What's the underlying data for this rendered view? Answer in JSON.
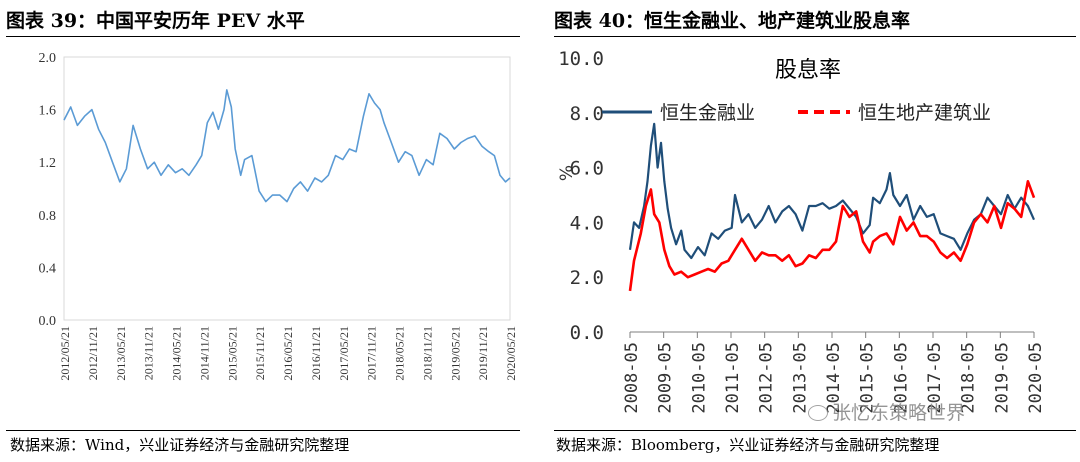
{
  "left_panel": {
    "title": "图表 39：中国平安历年 PEV 水平",
    "source": "数据来源：Wind，兴业证券经济与金融研究院整理"
  },
  "right_panel": {
    "title": "图表 40：恒生金融业、地产建筑业股息率",
    "source": "数据来源：Bloomberg，兴业证券经济与金融研究院整理"
  },
  "watermark": {
    "text": "张忆东策略世界"
  },
  "chart_data": [
    {
      "type": "line",
      "title": "",
      "xlabel": "",
      "ylabel": "",
      "ylim": [
        0,
        2
      ],
      "yticks": [
        "0.0",
        "0.4",
        "0.8",
        "1.2",
        "1.6",
        "2.0"
      ],
      "categories": [
        "2012/05/21",
        "2012/11/21",
        "2013/05/21",
        "2013/11/21",
        "2014/05/21",
        "2014/11/21",
        "2015/05/21",
        "2015/11/21",
        "2016/05/21",
        "2016/11/21",
        "2017/05/21",
        "2017/11/21",
        "2018/05/21",
        "2018/11/21",
        "2019/05/21",
        "2019/11/21",
        "2020/05/21"
      ],
      "x_range": [
        2012.38,
        2020.38
      ],
      "grid": false,
      "colors": {
        "line": "#5b9bd5"
      },
      "series": [
        {
          "name": "PEV",
          "x": [
            2012.38,
            2012.5,
            2012.62,
            2012.75,
            2012.88,
            2013.0,
            2013.12,
            2013.25,
            2013.38,
            2013.5,
            2013.62,
            2013.75,
            2013.88,
            2014.0,
            2014.12,
            2014.25,
            2014.38,
            2014.5,
            2014.62,
            2014.75,
            2014.85,
            2014.95,
            2015.05,
            2015.15,
            2015.25,
            2015.3,
            2015.38,
            2015.45,
            2015.55,
            2015.62,
            2015.75,
            2015.88,
            2016.0,
            2016.12,
            2016.25,
            2016.38,
            2016.5,
            2016.62,
            2016.75,
            2016.88,
            2017.0,
            2017.12,
            2017.25,
            2017.38,
            2017.5,
            2017.62,
            2017.75,
            2017.85,
            2017.95,
            2018.05,
            2018.12,
            2018.25,
            2018.38,
            2018.5,
            2018.62,
            2018.75,
            2018.88,
            2019.0,
            2019.12,
            2019.25,
            2019.38,
            2019.5,
            2019.62,
            2019.75,
            2019.88,
            2020.0,
            2020.1,
            2020.2,
            2020.3,
            2020.38
          ],
          "values": [
            1.52,
            1.62,
            1.48,
            1.55,
            1.6,
            1.45,
            1.35,
            1.2,
            1.05,
            1.15,
            1.48,
            1.3,
            1.15,
            1.2,
            1.1,
            1.18,
            1.12,
            1.15,
            1.1,
            1.18,
            1.25,
            1.5,
            1.58,
            1.45,
            1.6,
            1.75,
            1.62,
            1.3,
            1.1,
            1.22,
            1.25,
            0.98,
            0.9,
            0.95,
            0.95,
            0.9,
            1.0,
            1.05,
            0.98,
            1.08,
            1.05,
            1.1,
            1.25,
            1.22,
            1.3,
            1.28,
            1.55,
            1.72,
            1.65,
            1.6,
            1.5,
            1.35,
            1.2,
            1.28,
            1.25,
            1.1,
            1.22,
            1.18,
            1.42,
            1.38,
            1.3,
            1.35,
            1.38,
            1.4,
            1.32,
            1.28,
            1.25,
            1.1,
            1.05,
            1.08
          ]
        }
      ]
    },
    {
      "type": "line",
      "title": "股息率",
      "xlabel": "",
      "ylabel": "%",
      "ylim": [
        0,
        10
      ],
      "yticks": [
        "0.0",
        "2.0",
        "4.0",
        "6.0",
        "8.0",
        "10.0"
      ],
      "categories": [
        "2008-05",
        "2009-05",
        "2010-05",
        "2011-05",
        "2012-05",
        "2013-05",
        "2014-05",
        "2015-05",
        "2016-05",
        "2017-05",
        "2018-05",
        "2019-05",
        "2020-05"
      ],
      "x_range": [
        2008.38,
        2020.38
      ],
      "legend": "top",
      "grid": false,
      "colors": {
        "fin": "#1f4e79",
        "prop": "#ff0000"
      },
      "series": [
        {
          "name": "恒生金融业",
          "x": [
            2008.38,
            2008.5,
            2008.65,
            2008.8,
            2008.9,
            2009.0,
            2009.1,
            2009.2,
            2009.3,
            2009.4,
            2009.5,
            2009.6,
            2009.75,
            2009.9,
            2010.0,
            2010.2,
            2010.4,
            2010.6,
            2010.8,
            2011.0,
            2011.2,
            2011.4,
            2011.5,
            2011.7,
            2011.9,
            2012.1,
            2012.3,
            2012.5,
            2012.7,
            2012.9,
            2013.1,
            2013.3,
            2013.5,
            2013.7,
            2013.9,
            2014.1,
            2014.3,
            2014.5,
            2014.7,
            2014.9,
            2015.1,
            2015.3,
            2015.5,
            2015.6,
            2015.8,
            2016.0,
            2016.1,
            2016.2,
            2016.4,
            2016.6,
            2016.8,
            2017.0,
            2017.2,
            2017.4,
            2017.6,
            2017.8,
            2018.0,
            2018.2,
            2018.4,
            2018.6,
            2018.8,
            2019.0,
            2019.2,
            2019.4,
            2019.6,
            2019.8,
            2020.0,
            2020.2,
            2020.38
          ],
          "values": [
            3.0,
            4.0,
            3.8,
            4.6,
            5.5,
            6.8,
            7.6,
            6.0,
            6.9,
            5.5,
            4.5,
            3.8,
            3.2,
            3.7,
            3.0,
            2.7,
            3.1,
            2.8,
            3.6,
            3.4,
            3.7,
            3.8,
            5.0,
            4.0,
            4.3,
            3.8,
            4.1,
            4.6,
            4.0,
            4.4,
            4.6,
            4.3,
            3.7,
            4.6,
            4.6,
            4.7,
            4.5,
            4.6,
            4.8,
            4.5,
            4.2,
            3.6,
            3.9,
            4.9,
            4.7,
            5.2,
            5.8,
            5.0,
            4.6,
            5.0,
            4.1,
            4.6,
            4.2,
            4.3,
            3.6,
            3.5,
            3.4,
            3.0,
            3.6,
            4.1,
            4.3,
            4.9,
            4.6,
            4.3,
            5.0,
            4.5,
            4.9,
            4.6,
            4.1
          ]
        },
        {
          "name": "恒生地产建筑业",
          "x": [
            2008.38,
            2008.5,
            2008.7,
            2008.85,
            2009.0,
            2009.1,
            2009.25,
            2009.4,
            2009.55,
            2009.7,
            2009.9,
            2010.1,
            2010.3,
            2010.5,
            2010.7,
            2010.9,
            2011.1,
            2011.3,
            2011.5,
            2011.7,
            2011.9,
            2012.1,
            2012.3,
            2012.5,
            2012.7,
            2012.9,
            2013.1,
            2013.3,
            2013.5,
            2013.7,
            2013.9,
            2014.1,
            2014.3,
            2014.5,
            2014.7,
            2014.9,
            2015.1,
            2015.3,
            2015.5,
            2015.6,
            2015.8,
            2016.0,
            2016.2,
            2016.4,
            2016.6,
            2016.8,
            2017.0,
            2017.2,
            2017.4,
            2017.6,
            2017.8,
            2018.0,
            2018.2,
            2018.4,
            2018.6,
            2018.8,
            2019.0,
            2019.2,
            2019.4,
            2019.6,
            2019.8,
            2020.0,
            2020.2,
            2020.38
          ],
          "values": [
            1.5,
            2.6,
            3.6,
            4.6,
            5.2,
            4.3,
            4.0,
            3.0,
            2.4,
            2.1,
            2.2,
            2.0,
            2.1,
            2.2,
            2.3,
            2.2,
            2.5,
            2.6,
            3.0,
            3.4,
            3.0,
            2.6,
            2.9,
            2.8,
            2.8,
            2.6,
            2.8,
            2.4,
            2.5,
            2.8,
            2.7,
            3.0,
            3.0,
            3.3,
            4.6,
            4.2,
            4.4,
            3.3,
            2.9,
            3.3,
            3.5,
            3.6,
            3.2,
            4.2,
            3.7,
            4.0,
            3.5,
            3.5,
            3.3,
            2.9,
            2.7,
            2.9,
            2.6,
            3.2,
            4.0,
            4.3,
            4.0,
            4.6,
            3.8,
            4.7,
            4.5,
            4.2,
            5.5,
            4.9
          ]
        }
      ]
    }
  ]
}
